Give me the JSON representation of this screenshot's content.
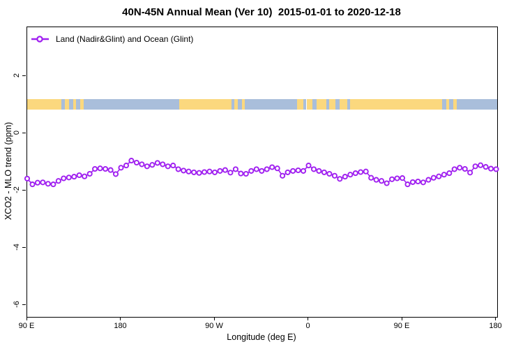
{
  "colors": {
    "series": "#A020F0",
    "marker_fill": "#ffffff",
    "land": "#fbd87e",
    "ocean": "#a9bedb",
    "frame": "#000000",
    "text": "#000000"
  },
  "chart_data": {
    "type": "line",
    "title": "40N-45N Annual Mean (Ver 10)  2015-01-01 to 2020-12-18",
    "xlabel": "Longitude (deg E)",
    "ylabel": "XCO2 - MLO trend (ppm)",
    "grid": false,
    "legend_position": "top-left",
    "xlim": [
      90,
      541
    ],
    "ylim": [
      -6.41,
      3.71
    ],
    "x_ticks": [
      {
        "label": "90 E",
        "lon": 90
      },
      {
        "label": "180",
        "lon": 180
      },
      {
        "label": "90 W",
        "lon": 270
      },
      {
        "label": "0",
        "lon": 360
      },
      {
        "label": "90 E",
        "lon": 450
      },
      {
        "label": "180",
        "lon": 540
      }
    ],
    "y_ticks": [
      {
        "label": "2",
        "value": 2
      },
      {
        "label": "0",
        "value": 0
      },
      {
        "label": "-2",
        "value": -2
      },
      {
        "label": "-4",
        "value": -4
      },
      {
        "label": "-6",
        "value": -6
      }
    ],
    "series": [
      {
        "name": "Land (Nadir&Glint) and Ocean (Glint)",
        "marker": "open-circle",
        "x": [
          90,
          95,
          100,
          105,
          110,
          115,
          120,
          125,
          130,
          135,
          140,
          145,
          150,
          155,
          160,
          165,
          170,
          175,
          180,
          185,
          190,
          195,
          200,
          205,
          210,
          215,
          220,
          225,
          230,
          235,
          240,
          245,
          250,
          255,
          260,
          265,
          270,
          275,
          280,
          285,
          290,
          295,
          300,
          305,
          310,
          315,
          320,
          325,
          330,
          335,
          340,
          345,
          350,
          355,
          360,
          365,
          370,
          375,
          380,
          385,
          390,
          395,
          400,
          405,
          410,
          415,
          420,
          425,
          430,
          435,
          440,
          445,
          450,
          455,
          460,
          465,
          470,
          475,
          480,
          485,
          490,
          495,
          500,
          505,
          510,
          515,
          520,
          525,
          530,
          535,
          540
        ],
        "values": [
          -1.58,
          -1.78,
          -1.72,
          -1.71,
          -1.76,
          -1.78,
          -1.66,
          -1.57,
          -1.54,
          -1.51,
          -1.46,
          -1.5,
          -1.41,
          -1.24,
          -1.22,
          -1.24,
          -1.28,
          -1.42,
          -1.2,
          -1.12,
          -0.95,
          -1.02,
          -1.08,
          -1.15,
          -1.1,
          -1.03,
          -1.08,
          -1.15,
          -1.12,
          -1.25,
          -1.3,
          -1.33,
          -1.36,
          -1.38,
          -1.35,
          -1.33,
          -1.36,
          -1.31,
          -1.28,
          -1.37,
          -1.25,
          -1.4,
          -1.41,
          -1.31,
          -1.25,
          -1.31,
          -1.25,
          -1.18,
          -1.22,
          -1.48,
          -1.36,
          -1.31,
          -1.29,
          -1.31,
          -1.12,
          -1.25,
          -1.31,
          -1.36,
          -1.41,
          -1.48,
          -1.59,
          -1.51,
          -1.44,
          -1.39,
          -1.35,
          -1.33,
          -1.55,
          -1.62,
          -1.66,
          -1.74,
          -1.6,
          -1.57,
          -1.56,
          -1.78,
          -1.7,
          -1.68,
          -1.71,
          -1.62,
          -1.55,
          -1.5,
          -1.44,
          -1.39,
          -1.25,
          -1.2,
          -1.24,
          -1.37,
          -1.15,
          -1.11,
          -1.17,
          -1.23,
          -1.25
        ]
      }
    ],
    "map_strip": {
      "description": "land-ocean strip at 40N-45N",
      "value_range": [
        0.83,
        1.2
      ],
      "segments": [
        [
          90,
          123,
          "land"
        ],
        [
          123,
          126,
          "ocean"
        ],
        [
          126,
          130,
          "land"
        ],
        [
          130,
          134,
          "ocean"
        ],
        [
          134,
          137,
          "land"
        ],
        [
          137,
          141,
          "ocean"
        ],
        [
          141,
          144,
          "land"
        ],
        [
          144,
          236,
          "ocean"
        ],
        [
          236,
          286,
          "land"
        ],
        [
          286,
          289,
          "ocean"
        ],
        [
          289,
          292,
          "land"
        ],
        [
          292,
          296,
          "ocean"
        ],
        [
          296,
          299,
          "land"
        ],
        [
          299,
          349,
          "ocean"
        ],
        [
          349,
          355,
          "land"
        ],
        [
          355,
          358,
          "ocean"
        ],
        [
          358,
          364,
          "land"
        ],
        [
          364,
          368,
          "ocean"
        ],
        [
          368,
          377,
          "land"
        ],
        [
          377,
          380,
          "ocean"
        ],
        [
          380,
          386,
          "land"
        ],
        [
          386,
          390,
          "ocean"
        ],
        [
          390,
          397,
          "land"
        ],
        [
          397,
          400,
          "ocean"
        ],
        [
          400,
          488,
          "land"
        ],
        [
          488,
          492,
          "ocean"
        ],
        [
          492,
          495,
          "land"
        ],
        [
          495,
          499,
          "ocean"
        ],
        [
          499,
          502,
          "land"
        ],
        [
          502,
          541,
          "ocean"
        ]
      ]
    }
  }
}
